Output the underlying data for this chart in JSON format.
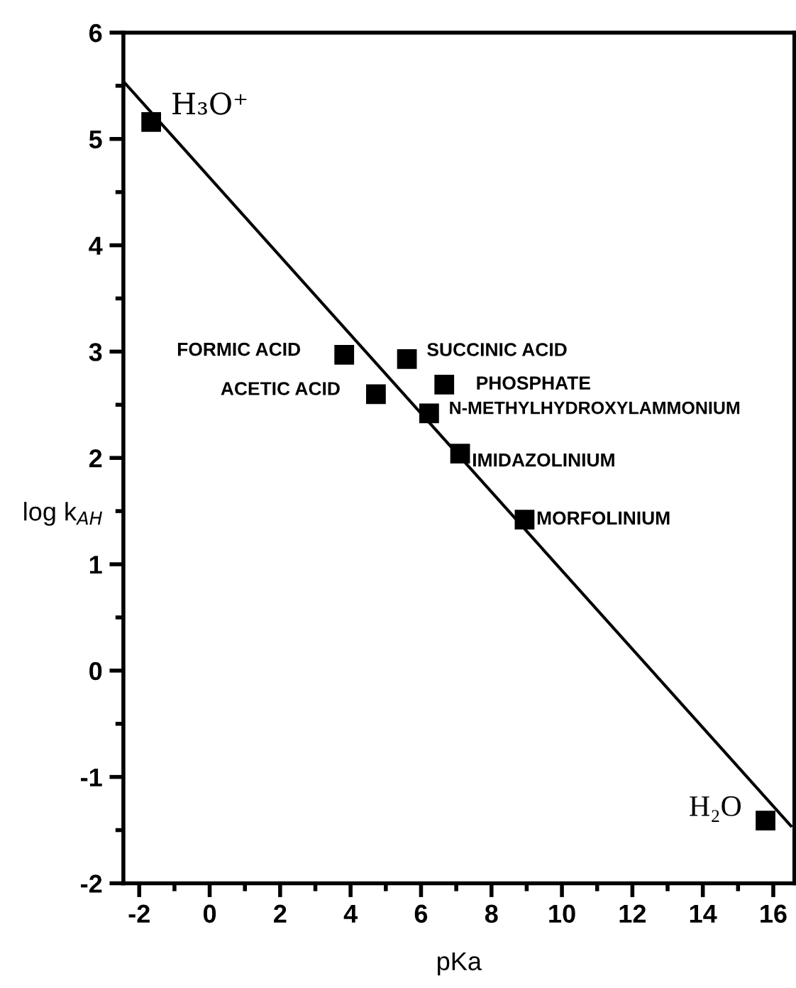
{
  "chart_data": {
    "type": "scatter",
    "xlabel": "pKa",
    "ylabel": "log k$_{AH}$",
    "xlim": [
      -2.45,
      16.6
    ],
    "ylim": [
      -2,
      6
    ],
    "xticks": [
      -2,
      0,
      2,
      4,
      6,
      8,
      10,
      12,
      14,
      16
    ],
    "yticks": [
      -2,
      -1,
      0,
      1,
      2,
      3,
      4,
      5,
      6
    ],
    "grid": false,
    "legend": false,
    "series": [
      {
        "marker": "square",
        "color": "#000000",
        "x": [
          -1.66,
          3.82,
          4.72,
          5.6,
          6.66,
          6.23,
          7.11,
          8.94,
          15.78
        ],
        "values": [
          5.16,
          2.97,
          2.6,
          2.93,
          2.69,
          2.42,
          2.04,
          1.42,
          -1.41
        ]
      },
      {
        "type": "line",
        "color": "#000000",
        "line_style": "solid",
        "x": [
          -2.42,
          16.5
        ],
        "values": [
          5.53,
          -1.46
        ]
      }
    ],
    "annotations": [
      {
        "text": "H₃O⁺",
        "x": -1.66,
        "y": 5.16
      },
      {
        "text": "FORMIC ACID",
        "x": 3.82,
        "y": 2.97
      },
      {
        "text": "ACETIC ACID",
        "x": 4.72,
        "y": 2.6
      },
      {
        "text": "SUCCINIC ACID",
        "x": 5.6,
        "y": 2.93
      },
      {
        "text": "PHOSPHATE",
        "x": 6.66,
        "y": 2.69
      },
      {
        "text": "N-METHYLHYDROXYLAMMONIUM",
        "x": 6.23,
        "y": 2.42
      },
      {
        "text": "IMIDAZOLINIUM",
        "x": 7.11,
        "y": 2.04
      },
      {
        "text": "MORFOLINIUM",
        "x": 8.94,
        "y": 1.42
      },
      {
        "text": "H₂O",
        "x": 15.78,
        "y": -1.41
      }
    ]
  }
}
